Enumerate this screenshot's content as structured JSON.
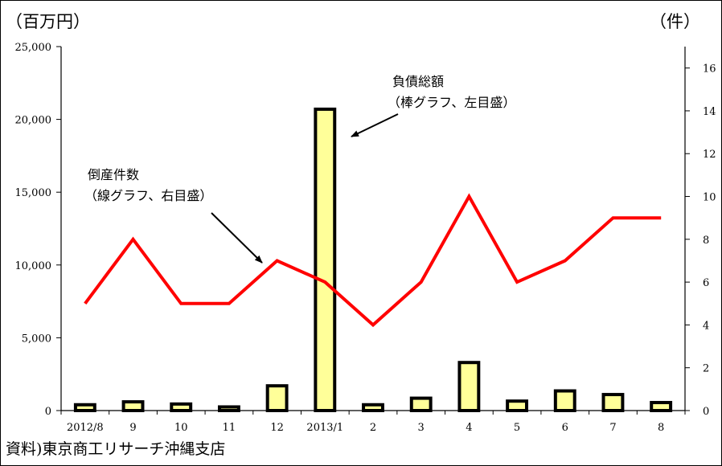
{
  "labels": {
    "left_unit": "（百万円）",
    "right_unit": "（件）",
    "source": "資料)東京商工リサーチ沖縄支店"
  },
  "chart_data": {
    "type": "bar",
    "categories": [
      "2012/8",
      "9",
      "10",
      "11",
      "12",
      "2013/1",
      "2",
      "3",
      "4",
      "5",
      "6",
      "7",
      "8"
    ],
    "series": [
      {
        "name": "負債総額",
        "type": "bar",
        "axis": "left",
        "color": "#ffff99",
        "values": [
          400,
          600,
          450,
          250,
          1700,
          20700,
          400,
          850,
          3300,
          650,
          1350,
          1100,
          550
        ]
      },
      {
        "name": "倒産件数",
        "type": "line",
        "axis": "right",
        "color": "#ff0000",
        "values": [
          5,
          8,
          5,
          5,
          7,
          6,
          4,
          6,
          10,
          6,
          7,
          9,
          9
        ]
      }
    ],
    "left_axis": {
      "min": 0,
      "max": 25000,
      "ticks": [
        0,
        5000,
        10000,
        15000,
        20000,
        25000
      ],
      "tick_labels": [
        "0",
        "5,000",
        "10,000",
        "15,000",
        "20,000",
        "25,000"
      ]
    },
    "right_axis": {
      "min": 0,
      "max": 17,
      "ticks": [
        0,
        2,
        4,
        6,
        8,
        10,
        12,
        14,
        16
      ],
      "tick_labels": [
        "0",
        "2",
        "4",
        "6",
        "8",
        "10",
        "12",
        "14",
        "16"
      ]
    },
    "annotations": [
      {
        "name": "debt-annotation",
        "lines": [
          "負債総額",
          "（棒グラフ、左目盛）"
        ]
      },
      {
        "name": "count-annotation",
        "lines": [
          "倒産件数",
          "（線グラフ、右目盛）"
        ]
      }
    ],
    "grid": false
  }
}
